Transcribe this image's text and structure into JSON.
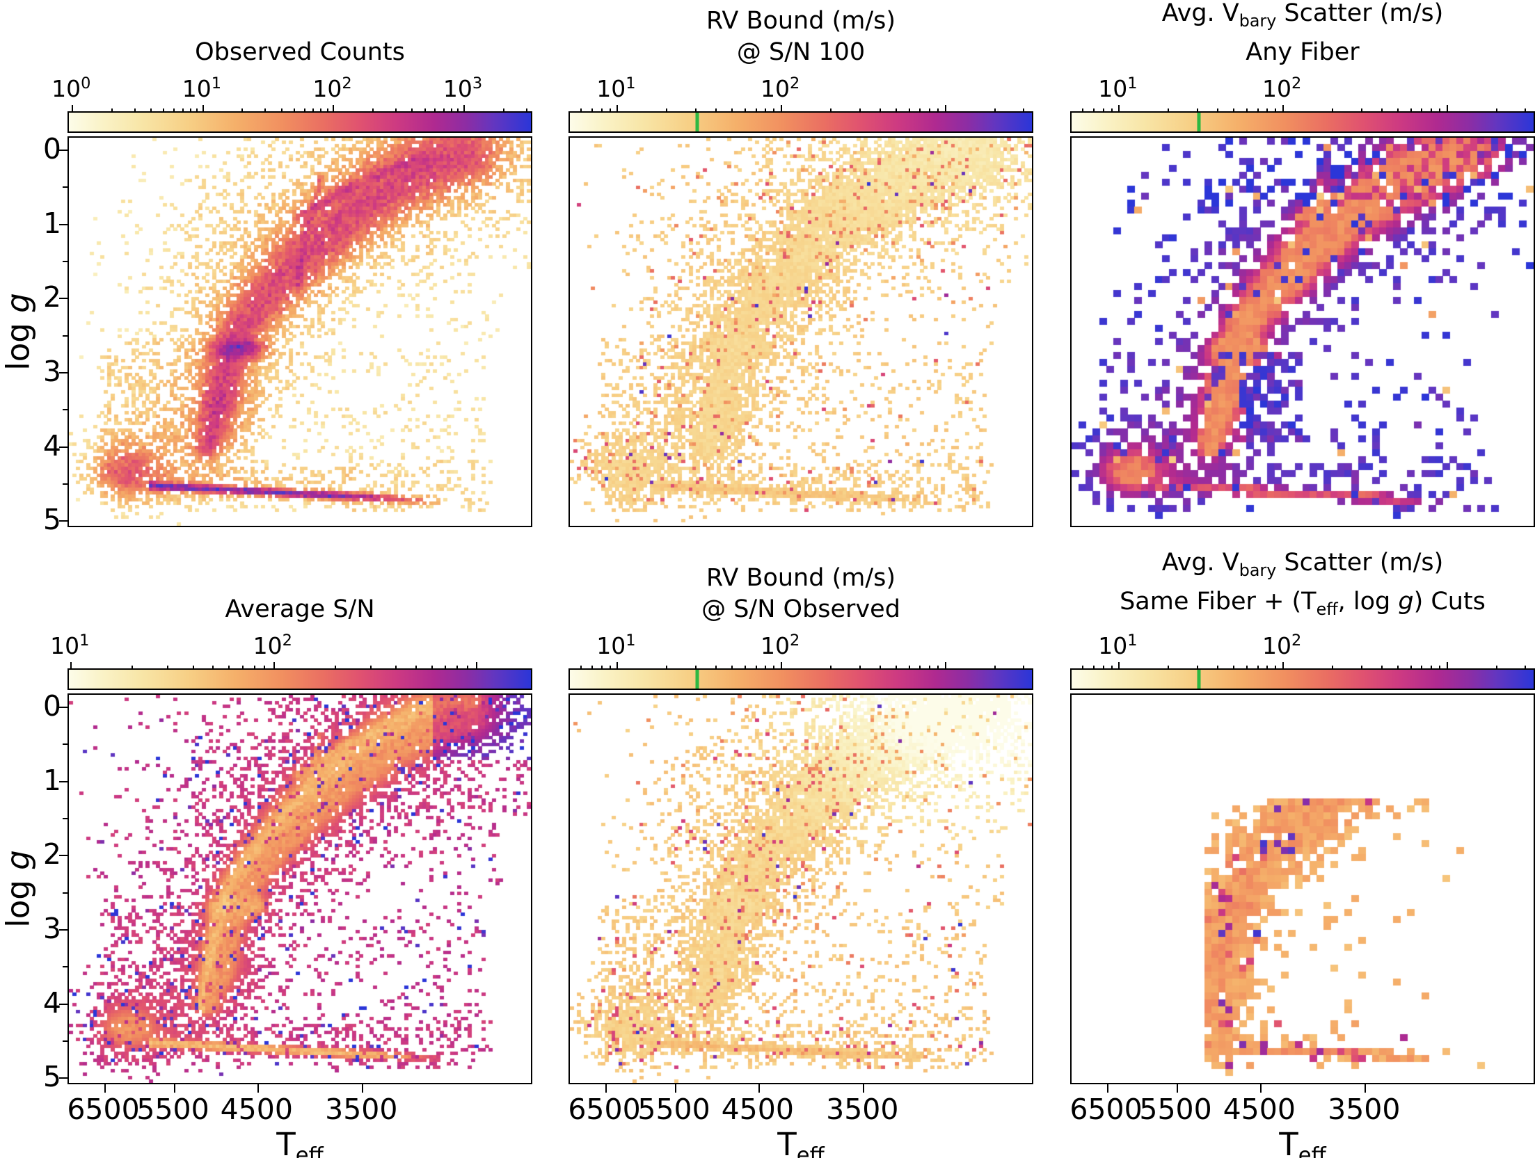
{
  "figure": {
    "background": "#ffffff",
    "kind": "matplotlib-multipanel-heatmap-figure"
  },
  "chart_data": {
    "type": "heatmap",
    "layout": {
      "rows": 2,
      "cols": 3
    },
    "axes": {
      "x": {
        "title": [
          {
            "t": "T"
          },
          {
            "t": "eff",
            "sub": true
          }
        ],
        "scale": "log-reversed",
        "lim": [
          7060,
          2330
        ],
        "ticks": [
          6500,
          5500,
          4500,
          3500
        ],
        "tick_labels": [
          "6500",
          "5500",
          "4500",
          "3500"
        ]
      },
      "y": {
        "title": [
          {
            "t": "log "
          },
          {
            "t": "g",
            "italic": true
          }
        ],
        "scale": "linear-reversed",
        "lim": [
          -0.15,
          5.08
        ],
        "ticks": [
          0,
          1,
          2,
          3,
          4,
          5
        ],
        "tick_labels": [
          "0",
          "1",
          "2",
          "3",
          "4",
          "5"
        ],
        "minor_step": 0.5
      }
    },
    "colormap": {
      "stops": [
        [
          0.0,
          "#fdfce9"
        ],
        [
          0.07,
          "#faf3c8"
        ],
        [
          0.16,
          "#f8e5a6"
        ],
        [
          0.26,
          "#f7cf85"
        ],
        [
          0.36,
          "#f5b06a"
        ],
        [
          0.46,
          "#f19060"
        ],
        [
          0.55,
          "#ea6f62"
        ],
        [
          0.63,
          "#e05270"
        ],
        [
          0.71,
          "#cd3a82"
        ],
        [
          0.79,
          "#b02a90"
        ],
        [
          0.86,
          "#8d2da4"
        ],
        [
          0.92,
          "#6336c0"
        ],
        [
          1.0,
          "#2b36d8"
        ]
      ]
    },
    "colorbar_marker": {
      "value_m_s": 30,
      "frac": 0.272,
      "color": "#2eb842"
    },
    "panels": [
      {
        "id": "observed-counts",
        "row": 0,
        "col": 0,
        "seed": 11,
        "bins": [
          132,
          112
        ],
        "title": [
          [
            {
              "t": "Observed Counts"
            }
          ]
        ],
        "colorbar": {
          "decade": 0.2825,
          "green": false,
          "labels": [
            {
              "exp": "0",
              "f": 0.005
            },
            {
              "exp": "1",
              "f": 0.2875
            },
            {
              "exp": "2",
              "f": 0.57
            },
            {
              "exp": "3",
              "f": 0.8525
            }
          ]
        },
        "style": {
          "kind": "counts",
          "base": 0.13,
          "k": 0.55,
          "strip_boost": 0.12
        }
      },
      {
        "id": "rv-bound-sn100",
        "row": 0,
        "col": 1,
        "seed": 22,
        "bins": [
          132,
          112
        ],
        "title": [
          [
            {
              "t": "RV Bound (m/s)"
            }
          ],
          [
            {
              "t": "@ S/N 100"
            }
          ]
        ],
        "colorbar": {
          "decade": 0.355,
          "green": true,
          "labels": [
            {
              "exp": "1",
              "f": 0.1
            },
            {
              "exp": "2",
              "f": 0.455
            }
          ]
        },
        "style": {
          "kind": "rv",
          "base": 0.27,
          "k": -0.05,
          "trlight": 0.1,
          "speckle_p": 0.09,
          "slo": 0.12,
          "shi": 0.42,
          "navy_p": 0.006,
          "noise": 0.035,
          "strip_boost": 0.08
        }
      },
      {
        "id": "vbary-scatter-any-fiber",
        "row": 0,
        "col": 2,
        "seed": 33,
        "bins": [
          66,
          56
        ],
        "title": [
          [
            {
              "t": "Avg. V"
            },
            {
              "t": "bary",
              "sub": true
            },
            {
              "t": " Scatter (m/s)"
            }
          ],
          [
            {
              "t": "Any Fiber"
            }
          ]
        ],
        "colorbar": {
          "decade": 0.355,
          "green": true,
          "labels": [
            {
              "exp": "1",
              "f": 0.1
            },
            {
              "exp": "2",
              "f": 0.455
            }
          ]
        },
        "style": {
          "kind": "edge",
          "base": 0.47,
          "ec": 0.5,
          "dref": 2.5,
          "noise": 0.05,
          "strip_boost": 0.18,
          "navy_p": 0.07,
          "orange_p": 0.03,
          "top_dark": 0.22,
          "navy_rect": [
            0.365,
            0.505,
            0.555,
            0.79
          ],
          "extra_rect": [
            0.365,
            0.505,
            0.555,
            0.79,
            0.5
          ]
        }
      },
      {
        "id": "average-sn",
        "row": 1,
        "col": 0,
        "seed": 44,
        "bins": [
          132,
          112
        ],
        "title": [
          [
            {
              "t": "Average S/N"
            }
          ]
        ],
        "colorbar": {
          "decade": 0.439,
          "green": false,
          "labels": [
            {
              "exp": "1",
              "f": 0.002
            },
            {
              "exp": "2",
              "f": 0.441
            }
          ]
        },
        "style": {
          "kind": "edge",
          "base": 0.44,
          "ec": 0.3,
          "dref": 2.5,
          "noise": 0.05,
          "strip_boost": -0.1,
          "navy_p": 0.018,
          "speckle_p": 0.07,
          "ridge_light": 0.11,
          "clump_light": 0.07,
          "corner_dark": 0.2
        }
      },
      {
        "id": "rv-bound-sn-observed",
        "row": 1,
        "col": 1,
        "seed": 55,
        "bins": [
          132,
          112
        ],
        "title": [
          [
            {
              "t": "RV Bound (m/s)"
            }
          ],
          [
            {
              "t": "@ S/N Observed"
            }
          ]
        ],
        "colorbar": {
          "decade": 0.355,
          "green": true,
          "labels": [
            {
              "exp": "1",
              "f": 0.1
            },
            {
              "exp": "2",
              "f": 0.455
            }
          ]
        },
        "style": {
          "kind": "rv",
          "base": 0.28,
          "k": -0.05,
          "trlight": 0.38,
          "speckle_p": 0.1,
          "slo": 0.12,
          "shi": 0.45,
          "navy_p": 0.006,
          "noise": 0.04,
          "strip_boost": 0.1
        }
      },
      {
        "id": "vbary-scatter-same-fiber-cuts",
        "row": 1,
        "col": 2,
        "seed": 66,
        "bins": [
          66,
          56
        ],
        "title": [
          [
            {
              "t": "Avg. V"
            },
            {
              "t": "bary",
              "sub": true
            },
            {
              "t": " Scatter (m/s)"
            }
          ],
          [
            {
              "t": "Same Fiber + (T"
            },
            {
              "t": "eff",
              "sub": true
            },
            {
              "t": ", log "
            },
            {
              "t": "g",
              "italic": true
            },
            {
              "t": ") Cuts"
            }
          ]
        ],
        "colorbar": {
          "decade": 0.355,
          "green": true,
          "labels": [
            {
              "exp": "1",
              "f": 0.1
            },
            {
              "exp": "2",
              "f": 0.455
            }
          ]
        },
        "style": {
          "kind": "cut",
          "base": 0.33,
          "k": 0.1,
          "speckle_p": 0.07,
          "navy_p": 0.015,
          "noise": 0.05,
          "left_blob": [
            0.285,
            0.4,
            0.7,
            0.97,
            0.8
          ]
        }
      }
    ],
    "structure": {
      "band": {
        "pts": [
          [
            0.3,
            0.8
          ],
          [
            0.32,
            0.7
          ],
          [
            0.345,
            0.58
          ],
          [
            0.37,
            0.5
          ],
          [
            0.42,
            0.42
          ],
          [
            0.5,
            0.315
          ],
          [
            0.6,
            0.21
          ],
          [
            0.7,
            0.125
          ],
          [
            0.78,
            0.075
          ],
          [
            0.845,
            0.048
          ]
        ],
        "w0": 0.03,
        "w1": 0.1,
        "amp": 3.2,
        "halo_mult": 2.6,
        "halo_amp": 0.45
      },
      "clump": {
        "x": 0.368,
        "y": 0.545,
        "sx": 0.045,
        "sy": 0.022,
        "amp": 7.0
      },
      "dwarf": {
        "x": 0.13,
        "y": 0.86,
        "sx": 0.058,
        "sy": 0.05,
        "amp": 2.6,
        "dx": 0.165,
        "dy": 0.845,
        "dsx": 0.125,
        "dsy": 0.095,
        "damp": 0.55
      },
      "bridge": {
        "x": 0.335,
        "y": 0.695,
        "sx": 0.055,
        "sy": 0.08,
        "amp": 1.0
      },
      "strip": {
        "x0": 0.175,
        "x1": 0.8,
        "xtaper": 0.58,
        "y0": 0.897,
        "slope": 0.04,
        "sy": 0.0085,
        "amp": 5.5,
        "sheath_mult": 2.6,
        "sheath_amp": 0.45
      },
      "arc": {
        "pts": [
          [
            0.545,
            0.1
          ],
          [
            0.535,
            0.16
          ],
          [
            0.515,
            0.24
          ],
          [
            0.502,
            0.32
          ],
          [
            0.498,
            0.38
          ]
        ],
        "s": 0.006,
        "amp": 1.5
      },
      "ridges": [
        {
          "pts": [
            [
              0.5,
              0.205
            ],
            [
              0.615,
              0.125
            ]
          ],
          "s": 0.013,
          "amp": 2.0
        },
        {
          "pts": [
            [
              0.655,
              0.105
            ],
            [
              0.775,
              0.048
            ]
          ],
          "s": 0.012,
          "amp": 1.6
        }
      ],
      "scatter": [
        {
          "x0": 0.06,
          "x1": 0.9,
          "y0": 0.55,
          "y1": 0.965,
          "amp": 0.1
        },
        {
          "x0": 0.07,
          "x1": 0.36,
          "y0": 0.52,
          "y1": 0.8,
          "amp": 0.16
        },
        {
          "x0": 0.25,
          "x1": 0.58,
          "y0": 0.1,
          "y1": 0.52,
          "amp": 0.055
        },
        {
          "x0": 0.74,
          "x1": 0.94,
          "y0": 0.28,
          "y1": 0.55,
          "amp": 0.045
        },
        {
          "x0": 0.2,
          "x1": 0.62,
          "y0": 0.845,
          "y1": 0.89,
          "amp": 0.22
        },
        {
          "x0": 0.6,
          "x1": 0.92,
          "y0": 0.83,
          "y1": 0.965,
          "amp": 0.12
        }
      ]
    }
  }
}
